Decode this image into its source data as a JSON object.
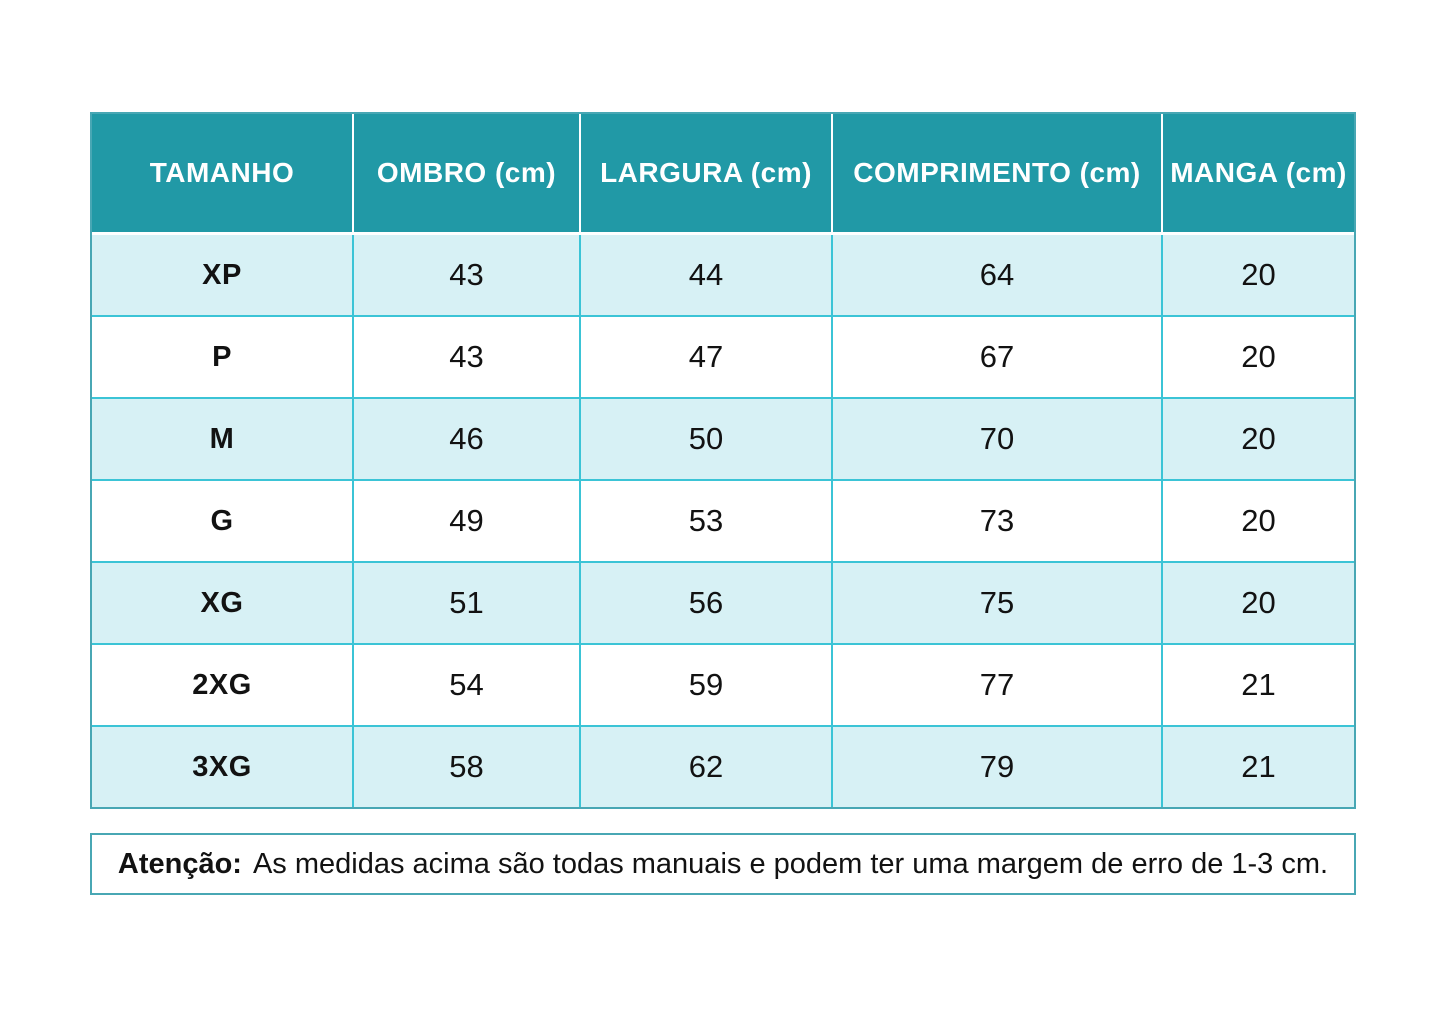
{
  "colors": {
    "header_bg": "#2199A6",
    "row_light_bg": "#D7F1F5",
    "row_white_bg": "#FFFFFF",
    "grid_line": "#3BC4D6",
    "outer_border": "#48A7B4",
    "header_text": "#FFFFFF",
    "body_text": "#121212"
  },
  "chart_data": {
    "type": "table",
    "title": "",
    "columns": [
      "TAMANHO",
      "OMBRO (cm)",
      "LARGURA (cm)",
      "COMPRIMENTO (cm)",
      "MANGA (cm)"
    ],
    "rows": [
      [
        "XP",
        "43",
        "44",
        "64",
        "20"
      ],
      [
        "P",
        "43",
        "47",
        "67",
        "20"
      ],
      [
        "M",
        "46",
        "50",
        "70",
        "20"
      ],
      [
        "G",
        "49",
        "53",
        "73",
        "20"
      ],
      [
        "XG",
        "51",
        "56",
        "75",
        "20"
      ],
      [
        "2XG",
        "54",
        "59",
        "77",
        "21"
      ],
      [
        "3XG",
        "58",
        "62",
        "79",
        "21"
      ]
    ],
    "layout": {
      "striped": true,
      "first_stripe": "light",
      "header_position": "top"
    }
  },
  "note": {
    "label": "Atenção:",
    "text": "As medidas acima são todas manuais e podem ter uma margem de erro de 1-3 cm."
  }
}
